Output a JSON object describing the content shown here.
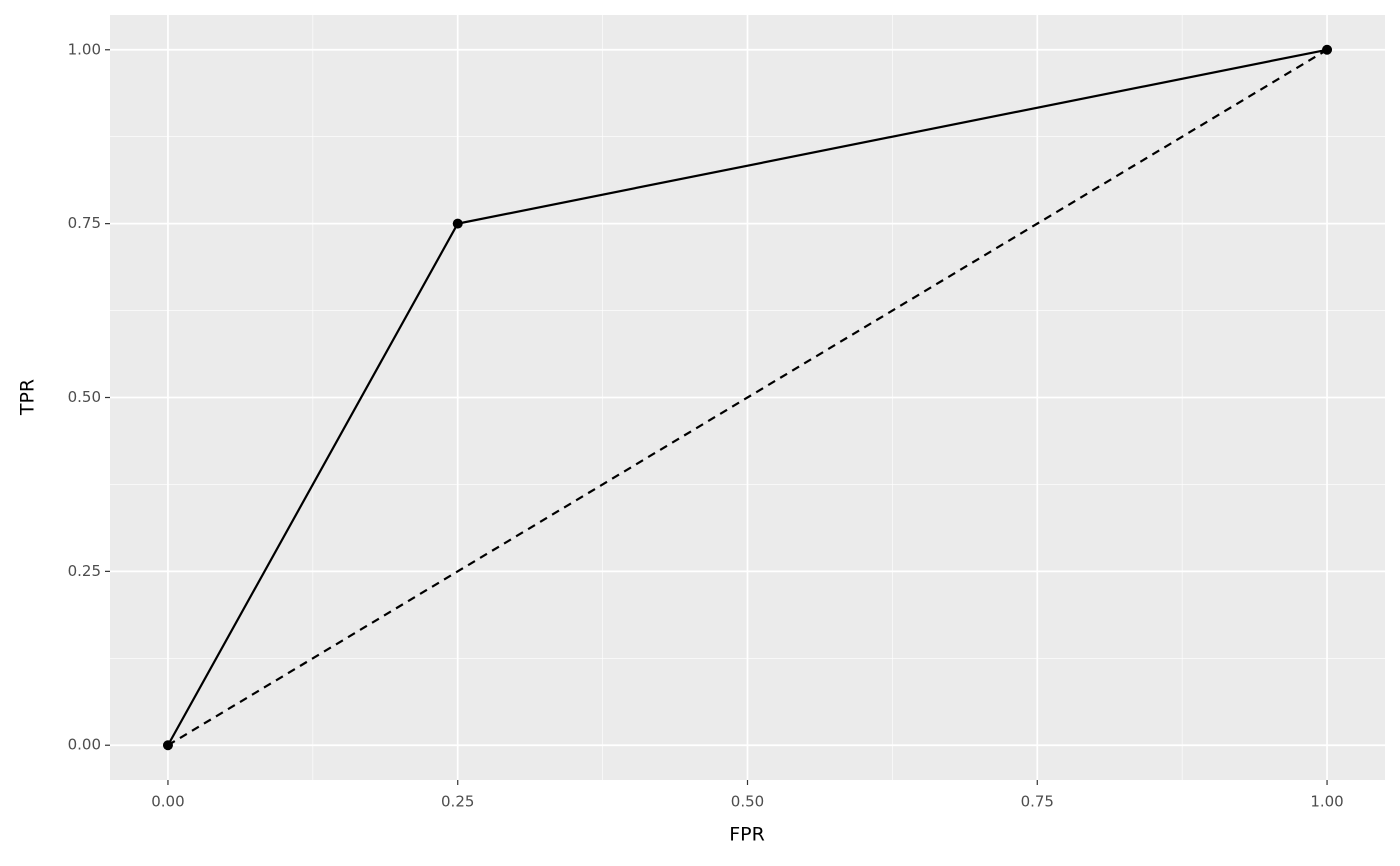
{
  "chart_data": {
    "type": "line",
    "x_label": "FPR",
    "y_label": "TPR",
    "series": [
      {
        "x": [
          0,
          0.25,
          1
        ],
        "values": [
          0,
          0.75,
          1
        ],
        "color": "#000000",
        "style": "solid",
        "points": true
      },
      {
        "x": [
          0,
          1
        ],
        "values": [
          0,
          1
        ],
        "color": "#000000",
        "style": "dashed",
        "points": false
      }
    ],
    "xlim": [
      -0.05,
      1.05
    ],
    "ylim": [
      -0.05,
      1.05
    ],
    "xticks": [
      {
        "value": 0,
        "label": "0.00"
      },
      {
        "value": 0.25,
        "label": "0.25"
      },
      {
        "value": 0.5,
        "label": "0.50"
      },
      {
        "value": 0.75,
        "label": "0.75"
      },
      {
        "value": 1,
        "label": "1.00"
      }
    ],
    "yticks": [
      {
        "value": 0,
        "label": "0.00"
      },
      {
        "value": 0.25,
        "label": "0.25"
      },
      {
        "value": 0.5,
        "label": "0.50"
      },
      {
        "value": 0.75,
        "label": "0.75"
      },
      {
        "value": 1,
        "label": "1.00"
      }
    ],
    "grid": true,
    "panel_color": "#ebebeb"
  }
}
